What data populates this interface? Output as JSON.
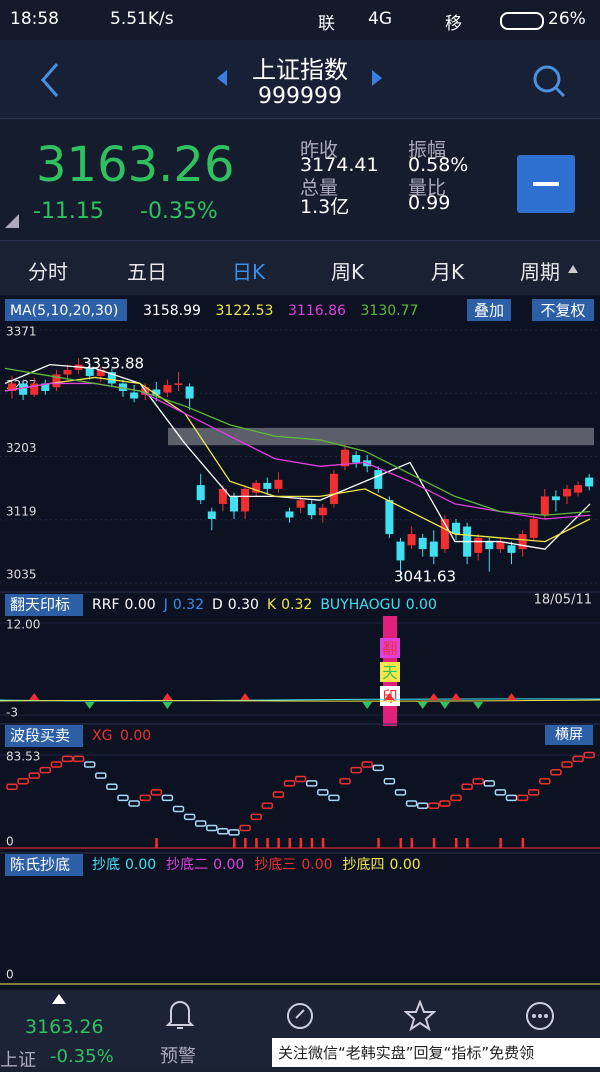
{
  "status": {
    "time": "18:58",
    "speed": "5.51K/s",
    "carrier1": "联",
    "net": "4G",
    "carrier2": "移",
    "battery": "26%"
  },
  "header": {
    "title": "上证指数",
    "code": "999999"
  },
  "quote": {
    "price": "3163.26",
    "change": "-11.15",
    "pct": "-0.35%",
    "stats": [
      {
        "label": "昨收",
        "value": "3174.41"
      },
      {
        "label": "振幅",
        "value": "0.58%"
      },
      {
        "label": "总量",
        "value": "1.3亿"
      },
      {
        "label": "量比",
        "value": "0.99"
      }
    ]
  },
  "tabs": [
    "分时",
    "五日",
    "日K",
    "周K",
    "月K",
    "周期"
  ],
  "main": {
    "legend": "MA(5,10,20,30)",
    "ma_values": [
      "3158.99",
      "3122.53",
      "3116.86",
      "3130.77"
    ],
    "buttons": [
      "叠加",
      "不复权"
    ],
    "ylim": [
      3035,
      3371
    ],
    "yticks": [
      3371,
      3287,
      3203,
      3119,
      3035
    ],
    "high_label": "3333.88",
    "low_label": "3041.63",
    "date": "18/05/11",
    "zone": [
      3218,
      3241
    ],
    "candles": [
      [
        3290,
        3300,
        3310,
        3280
      ],
      [
        3300,
        3285,
        3305,
        3278
      ],
      [
        3285,
        3300,
        3308,
        3282
      ],
      [
        3300,
        3290,
        3305,
        3285
      ],
      [
        3295,
        3312,
        3318,
        3290
      ],
      [
        3312,
        3318,
        3325,
        3305
      ],
      [
        3318,
        3325,
        3333.88,
        3312
      ],
      [
        3320,
        3310,
        3328,
        3305
      ],
      [
        3310,
        3318,
        3322,
        3302
      ],
      [
        3315,
        3300,
        3320,
        3295
      ],
      [
        3300,
        3290,
        3305,
        3282
      ],
      [
        3288,
        3280,
        3298,
        3275
      ],
      [
        3285,
        3295,
        3300,
        3278
      ],
      [
        3292,
        3285,
        3302,
        3276
      ],
      [
        3288,
        3298,
        3305,
        3282
      ],
      [
        3298,
        3300,
        3315,
        3290
      ],
      [
        3296,
        3280,
        3300,
        3265
      ],
      [
        3165,
        3145,
        3180,
        3140
      ],
      [
        3130,
        3120,
        3135,
        3105
      ],
      [
        3140,
        3160,
        3165,
        3130
      ],
      [
        3150,
        3130,
        3155,
        3120
      ],
      [
        3130,
        3160,
        3165,
        3120
      ],
      [
        3155,
        3168,
        3172,
        3150
      ],
      [
        3168,
        3160,
        3175,
        3152
      ],
      [
        3160,
        3172,
        3182,
        3155
      ],
      [
        3130,
        3122,
        3135,
        3115
      ],
      [
        3135,
        3145,
        3150,
        3128
      ],
      [
        3140,
        3125,
        3145,
        3120
      ],
      [
        3125,
        3135,
        3140,
        3115
      ],
      [
        3140,
        3180,
        3185,
        3135
      ],
      [
        3190,
        3212,
        3220,
        3185
      ],
      [
        3205,
        3195,
        3210,
        3188
      ],
      [
        3198,
        3190,
        3205,
        3182
      ],
      [
        3185,
        3160,
        3190,
        3155
      ],
      [
        3145,
        3100,
        3150,
        3095
      ],
      [
        3090,
        3065,
        3095,
        3041.63
      ],
      [
        3085,
        3100,
        3110,
        3080
      ],
      [
        3095,
        3080,
        3100,
        3070
      ],
      [
        3090,
        3070,
        3105,
        3060
      ],
      [
        3080,
        3120,
        3125,
        3075
      ],
      [
        3115,
        3100,
        3120,
        3092
      ],
      [
        3110,
        3070,
        3115,
        3060
      ],
      [
        3075,
        3095,
        3100,
        3065
      ],
      [
        3090,
        3080,
        3095,
        3050
      ],
      [
        3080,
        3090,
        3095,
        3075
      ],
      [
        3085,
        3075,
        3090,
        3060
      ],
      [
        3080,
        3100,
        3105,
        3070
      ],
      [
        3095,
        3120,
        3125,
        3090
      ],
      [
        3125,
        3150,
        3160,
        3120
      ],
      [
        3150,
        3145,
        3158,
        3130
      ],
      [
        3150,
        3160,
        3165,
        3140
      ],
      [
        3155,
        3165,
        3170,
        3150
      ],
      [
        3175,
        3163.26,
        3180,
        3158
      ]
    ],
    "ma": [
      {
        "color": "#ffffff",
        "values": [
          3300,
          3325,
          3320,
          3300,
          3220,
          3150,
          3150,
          3145,
          3170,
          3195,
          3090,
          3090,
          3080,
          3140
        ]
      },
      {
        "color": "#f2e64a",
        "values": [
          3290,
          3300,
          3308,
          3300,
          3260,
          3170,
          3150,
          3150,
          3160,
          3130,
          3100,
          3095,
          3090,
          3120
        ]
      },
      {
        "color": "#e040e0",
        "values": [
          3290,
          3300,
          3300,
          3290,
          3260,
          3230,
          3200,
          3190,
          3195,
          3170,
          3140,
          3130,
          3120,
          3125
        ]
      },
      {
        "color": "#5cb83a",
        "values": [
          3320,
          3310,
          3300,
          3290,
          3270,
          3245,
          3230,
          3225,
          3210,
          3180,
          3150,
          3130,
          3125,
          3130
        ]
      }
    ]
  },
  "p1": {
    "title": "翻天印标",
    "items": [
      {
        "name": "RRF",
        "value": "0.00"
      },
      {
        "name": "J",
        "value": "0.32"
      },
      {
        "name": "D",
        "value": "0.30"
      },
      {
        "name": "K",
        "value": "0.32"
      },
      {
        "name": "BUYHAOGU",
        "value": "0.00"
      }
    ],
    "ylim": [
      -3,
      12
    ],
    "yticks": [
      {
        "value": 12,
        "label": "12.00"
      },
      -3
    ],
    "marker": [
      "翻",
      "天",
      "印"
    ]
  },
  "p2": {
    "title": "波段买卖",
    "item": {
      "name": "XG",
      "value": "0.00"
    },
    "button": "横屏",
    "ylim": [
      0,
      83.53
    ],
    "yticks": [
      83.53,
      0
    ],
    "values": [
      55,
      60,
      65,
      70,
      75,
      80,
      80,
      75,
      65,
      55,
      45,
      40,
      45,
      50,
      45,
      35,
      28,
      22,
      18,
      15,
      14,
      18,
      28,
      38,
      48,
      58,
      62,
      58,
      50,
      45,
      60,
      70,
      75,
      72,
      60,
      50,
      40,
      38,
      38,
      40,
      45,
      55,
      60,
      58,
      50,
      45,
      45,
      50,
      60,
      68,
      75,
      80,
      83.53
    ]
  },
  "p3": {
    "title": "陈氏抄底",
    "items": [
      {
        "name": "抄底",
        "value": "0.00"
      },
      {
        "name": "抄底二",
        "value": "0.00"
      },
      {
        "name": "抄底三",
        "value": "0.00"
      },
      {
        "name": "抄底四",
        "value": "0.00"
      }
    ],
    "yticks": [
      0
    ]
  },
  "nav": {
    "price": "3163.26",
    "name": "上证",
    "pct": "-0.35%",
    "alert": "预警"
  },
  "watermark": "关注微信“老韩实盘”回复“指标”免费领"
}
